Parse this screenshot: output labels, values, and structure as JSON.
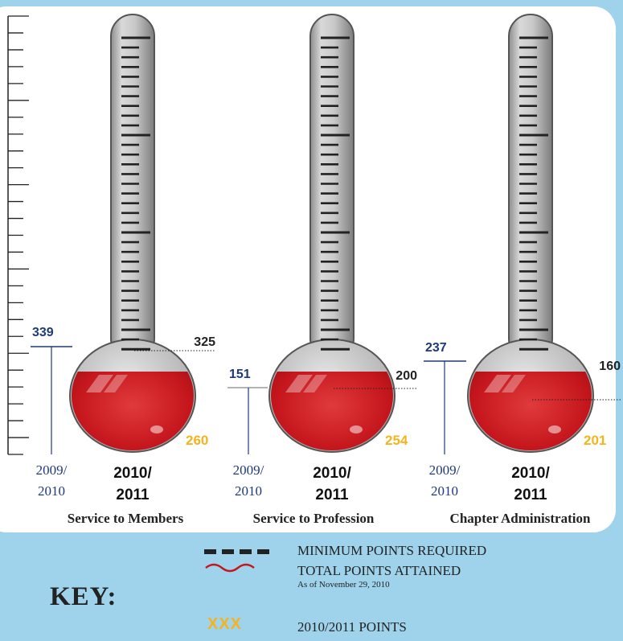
{
  "chart_data": {
    "type": "thermometer",
    "groups": [
      {
        "name": "Service to Members",
        "prev_label": "2009/\n2010",
        "curr_label": "2010/\n2011",
        "prev_value": 339,
        "minimum_required": 325,
        "current_points": 260
      },
      {
        "name": "Service to Profession",
        "prev_label": "2009/\n2010",
        "curr_label": "2010/\n2011",
        "prev_value": 151,
        "minimum_required": 200,
        "current_points": 254
      },
      {
        "name": "Chapter Administration",
        "prev_label": "2009/\n2010",
        "curr_label": "2010/\n2011",
        "prev_value": 237,
        "minimum_required": 160,
        "current_points": 201
      }
    ],
    "colors": {
      "prev": "#1e3a78",
      "minimum": "#222222",
      "current": "#f5b31f",
      "fill": "#c4161c",
      "background": "#9fd3ec"
    }
  },
  "key": {
    "title": "KEY:",
    "minimum": "MINIMUM POINTS REQUIRED",
    "total": "TOTAL POINTS ATTAINED",
    "as_of": "As of November 29, 2010",
    "points": "2010/2011 POINTS",
    "points_symbol": "XXX"
  }
}
